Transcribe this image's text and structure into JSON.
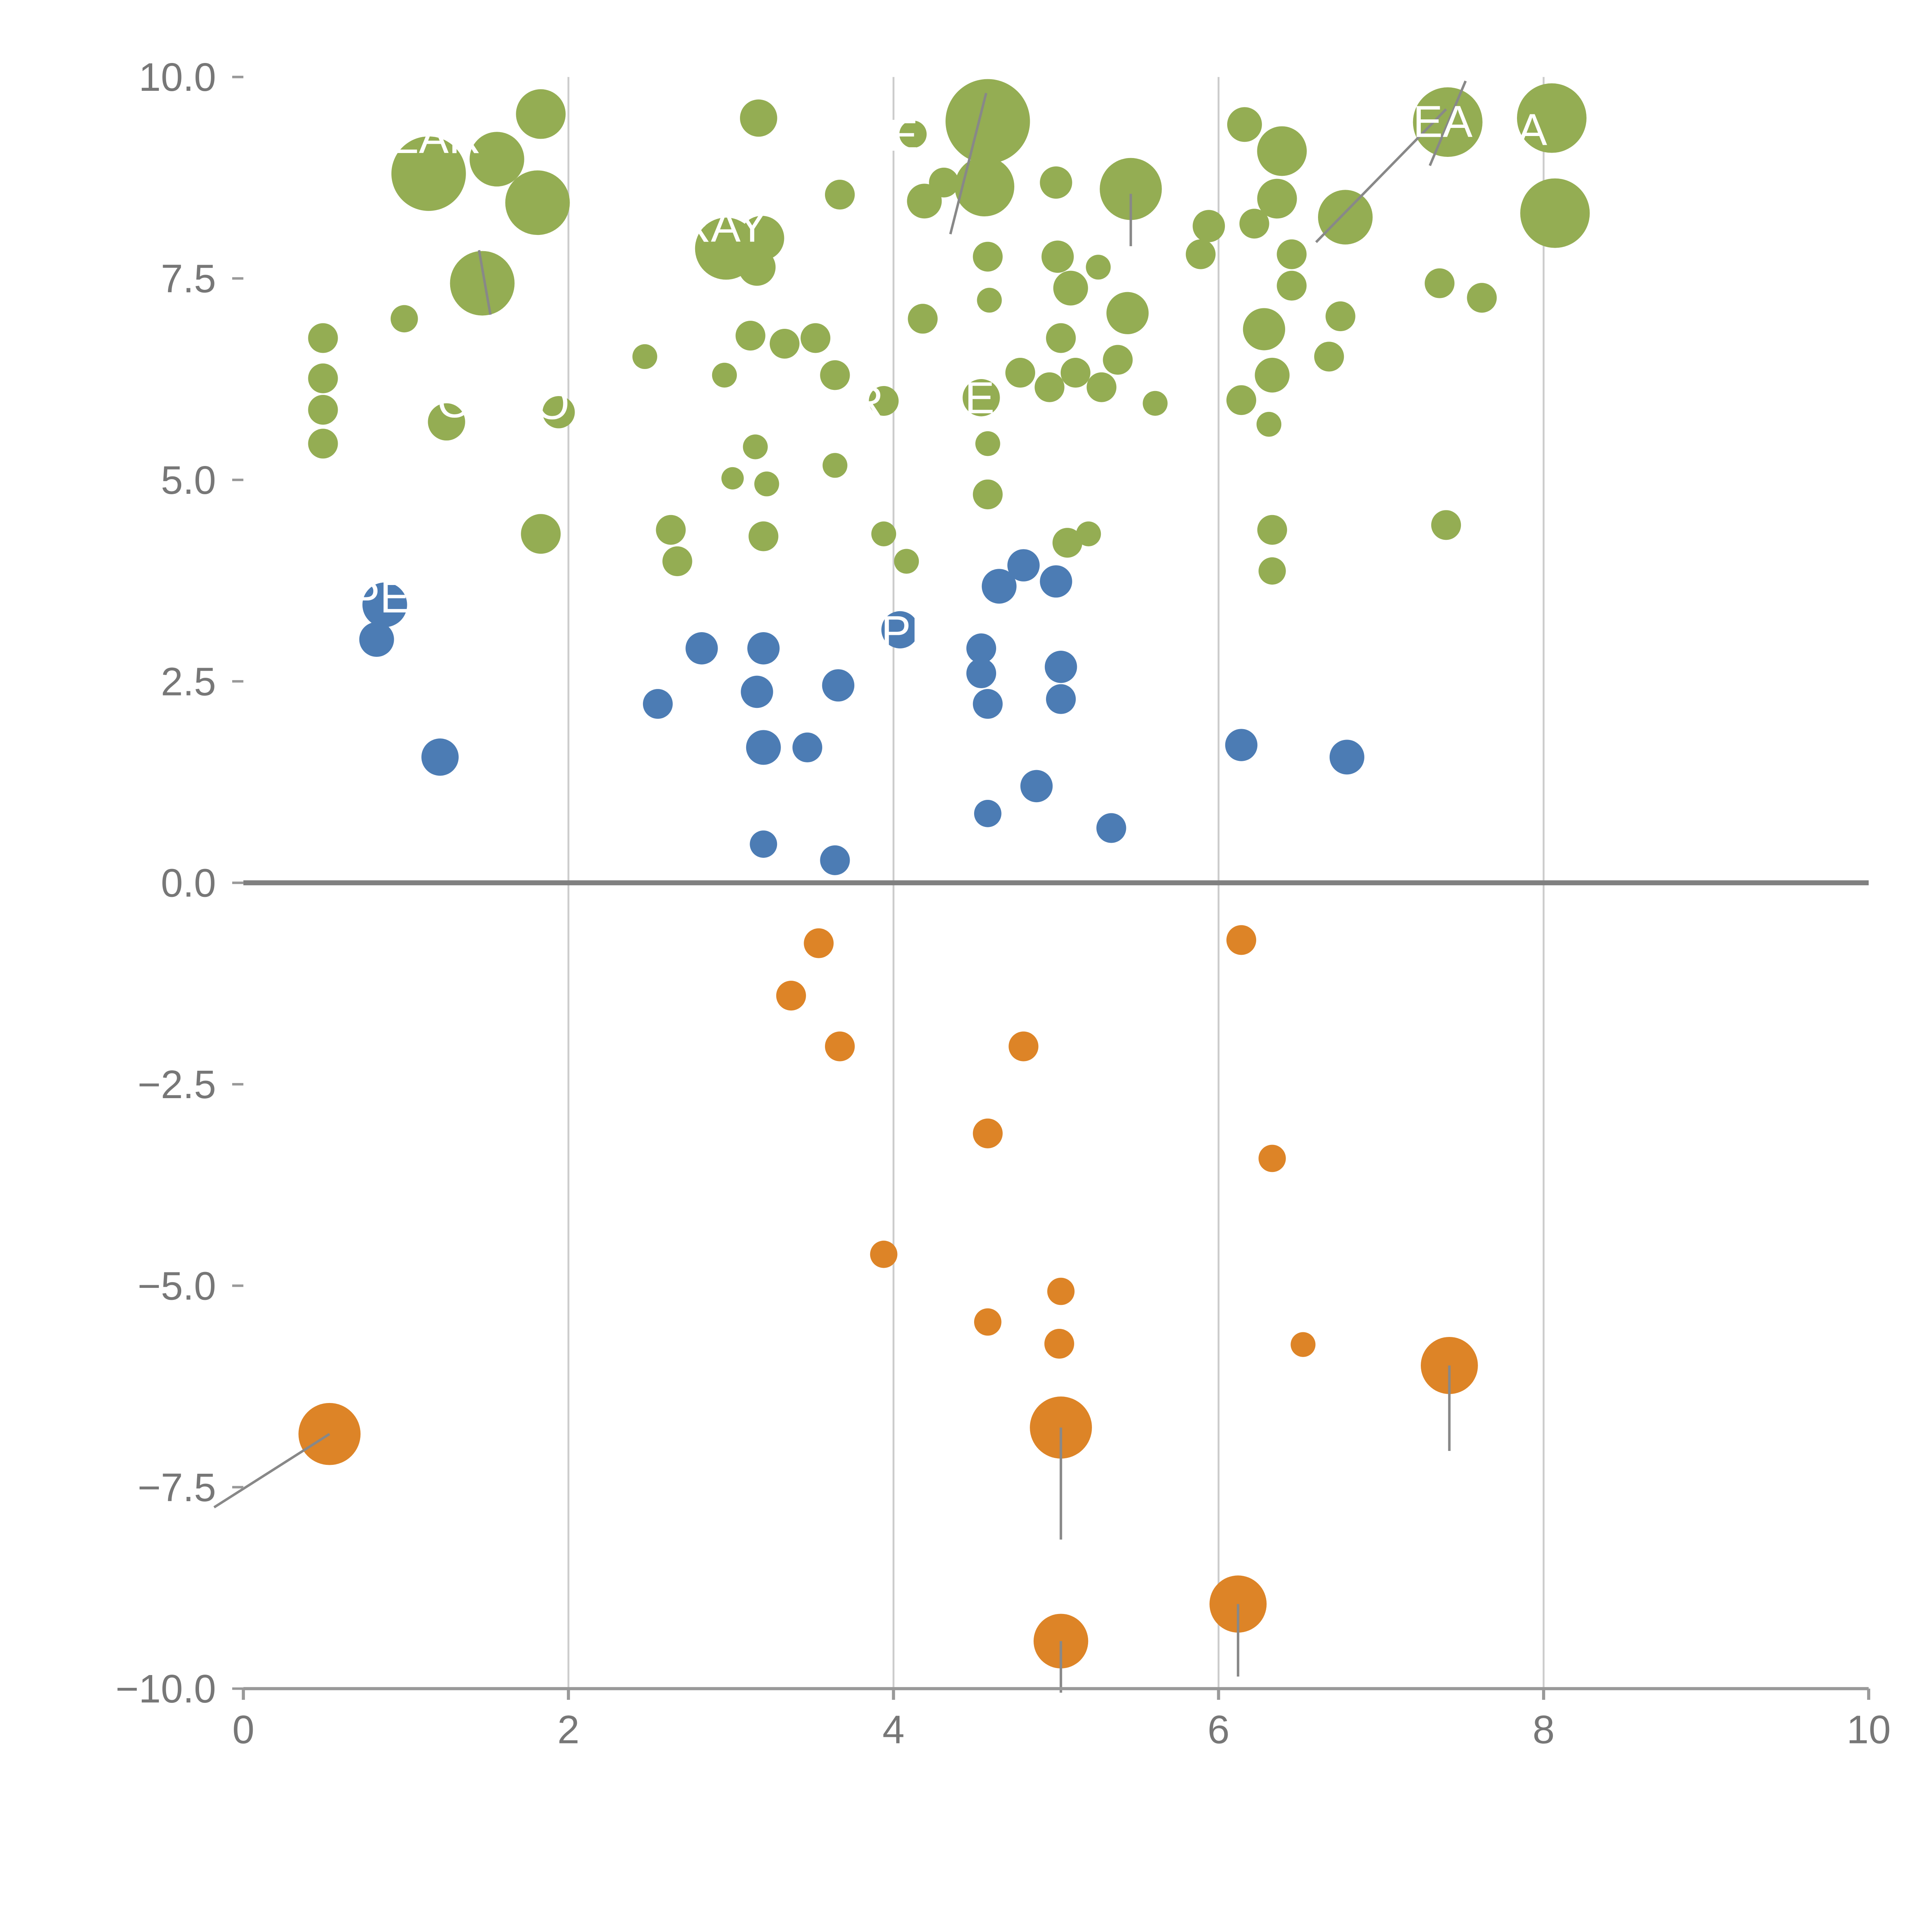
{
  "page": {
    "title": ""
  },
  "colors": {
    "green": "#94ad53",
    "blue": "#4c7cb4",
    "orange": "#dd8427",
    "grid": "#cccccc",
    "zero_line": "#808080",
    "axis": "#999999",
    "tick_label": "#777777",
    "annotation": "#ffffff",
    "leader": "#888888",
    "background": "#ffffff"
  },
  "chart_data": {
    "type": "scatter",
    "title": "",
    "xlabel": "",
    "ylabel": "",
    "xlim": [
      0,
      10
    ],
    "ylim": [
      -10,
      10
    ],
    "grid": "vertical-only",
    "legend": "none",
    "x_ticks": [
      0,
      2,
      4,
      6,
      8,
      10
    ],
    "x_tick_labels": [
      "0",
      "2",
      "4",
      "6",
      "8",
      "10"
    ],
    "y_ticks": [
      10.0,
      7.5,
      5.0,
      2.5,
      0.0,
      -2.5,
      -5.0,
      -7.5,
      -10.0
    ],
    "y_tick_labels": [
      "10.0",
      "7.5",
      "5.0",
      "2.5",
      "0.0",
      "−2.5",
      "−5.0",
      "−7.5",
      "−10.0"
    ],
    "series": [
      {
        "name": "green-bubbles",
        "color_key": "green",
        "points": [
          {
            "x": 1.14,
            "y": 8.8,
            "r": 30
          },
          {
            "x": 1.56,
            "y": 8.98,
            "r": 22
          },
          {
            "x": 1.83,
            "y": 9.54,
            "r": 20
          },
          {
            "x": 1.81,
            "y": 8.44,
            "r": 26
          },
          {
            "x": 3.17,
            "y": 9.49,
            "r": 15
          },
          {
            "x": 4.58,
            "y": 9.45,
            "r": 34
          },
          {
            "x": 4.56,
            "y": 8.64,
            "r": 24
          },
          {
            "x": 4.19,
            "y": 8.46,
            "r": 14
          },
          {
            "x": 4.31,
            "y": 8.69,
            "r": 12
          },
          {
            "x": 5.0,
            "y": 8.69,
            "r": 13
          },
          {
            "x": 5.46,
            "y": 8.61,
            "r": 25
          },
          {
            "x": 6.16,
            "y": 9.41,
            "r": 14
          },
          {
            "x": 6.39,
            "y": 9.08,
            "r": 20
          },
          {
            "x": 6.36,
            "y": 8.49,
            "r": 16
          },
          {
            "x": 7.41,
            "y": 9.44,
            "r": 28
          },
          {
            "x": 8.05,
            "y": 9.49,
            "r": 28
          },
          {
            "x": 8.07,
            "y": 8.31,
            "r": 28
          },
          {
            "x": 5.94,
            "y": 8.15,
            "r": 13
          },
          {
            "x": 6.22,
            "y": 8.18,
            "r": 12
          },
          {
            "x": 6.78,
            "y": 8.26,
            "r": 22
          },
          {
            "x": 7.36,
            "y": 7.44,
            "r": 12
          },
          {
            "x": 7.62,
            "y": 7.26,
            "r": 12
          },
          {
            "x": 3.67,
            "y": 8.54,
            "r": 12
          },
          {
            "x": 2.97,
            "y": 7.87,
            "r": 25
          },
          {
            "x": 3.19,
            "y": 8.0,
            "r": 18
          },
          {
            "x": 3.16,
            "y": 7.64,
            "r": 15
          },
          {
            "x": 1.47,
            "y": 7.44,
            "r": 26
          },
          {
            "x": 0.99,
            "y": 7.0,
            "r": 11
          },
          {
            "x": 5.01,
            "y": 7.77,
            "r": 13
          },
          {
            "x": 5.09,
            "y": 7.38,
            "r": 14
          },
          {
            "x": 5.26,
            "y": 7.64,
            "r": 10
          },
          {
            "x": 5.44,
            "y": 7.07,
            "r": 17
          },
          {
            "x": 5.03,
            "y": 6.76,
            "r": 12
          },
          {
            "x": 4.58,
            "y": 7.77,
            "r": 12
          },
          {
            "x": 4.59,
            "y": 7.23,
            "r": 10
          },
          {
            "x": 4.18,
            "y": 7.0,
            "r": 12
          },
          {
            "x": 0.49,
            "y": 6.76,
            "r": 12
          },
          {
            "x": 0.49,
            "y": 6.26,
            "r": 12
          },
          {
            "x": 0.49,
            "y": 5.87,
            "r": 12
          },
          {
            "x": 0.49,
            "y": 5.45,
            "r": 12
          },
          {
            "x": 1.25,
            "y": 5.72,
            "r": 15
          },
          {
            "x": 1.94,
            "y": 5.84,
            "r": 13
          },
          {
            "x": 2.47,
            "y": 6.53,
            "r": 10
          },
          {
            "x": 2.96,
            "y": 6.3,
            "r": 10
          },
          {
            "x": 3.12,
            "y": 6.79,
            "r": 12
          },
          {
            "x": 3.33,
            "y": 6.69,
            "r": 12
          },
          {
            "x": 3.52,
            "y": 6.76,
            "r": 12
          },
          {
            "x": 3.64,
            "y": 6.3,
            "r": 12
          },
          {
            "x": 3.94,
            "y": 5.98,
            "r": 12
          },
          {
            "x": 4.54,
            "y": 6.02,
            "r": 15
          },
          {
            "x": 4.78,
            "y": 6.33,
            "r": 12
          },
          {
            "x": 4.96,
            "y": 6.15,
            "r": 12
          },
          {
            "x": 5.12,
            "y": 6.33,
            "r": 12
          },
          {
            "x": 5.28,
            "y": 6.15,
            "r": 12
          },
          {
            "x": 5.38,
            "y": 6.49,
            "r": 12
          },
          {
            "x": 5.61,
            "y": 5.95,
            "r": 10
          },
          {
            "x": 6.14,
            "y": 5.99,
            "r": 12
          },
          {
            "x": 6.31,
            "y": 5.69,
            "r": 10
          },
          {
            "x": 6.33,
            "y": 6.3,
            "r": 14
          },
          {
            "x": 6.28,
            "y": 6.87,
            "r": 17
          },
          {
            "x": 4.58,
            "y": 5.45,
            "r": 10
          },
          {
            "x": 4.58,
            "y": 4.82,
            "r": 12
          },
          {
            "x": 3.15,
            "y": 5.41,
            "r": 10
          },
          {
            "x": 3.22,
            "y": 4.95,
            "r": 10
          },
          {
            "x": 3.64,
            "y": 5.18,
            "r": 10
          },
          {
            "x": 3.01,
            "y": 5.02,
            "r": 9
          },
          {
            "x": 2.63,
            "y": 4.38,
            "r": 12
          },
          {
            "x": 2.67,
            "y": 3.99,
            "r": 12
          },
          {
            "x": 1.83,
            "y": 4.33,
            "r": 16
          },
          {
            "x": 3.2,
            "y": 4.3,
            "r": 12
          },
          {
            "x": 3.94,
            "y": 4.33,
            "r": 10
          },
          {
            "x": 4.08,
            "y": 3.99,
            "r": 10
          },
          {
            "x": 5.07,
            "y": 4.22,
            "r": 12
          },
          {
            "x": 5.2,
            "y": 4.33,
            "r": 10
          },
          {
            "x": 6.33,
            "y": 4.38,
            "r": 12
          },
          {
            "x": 6.33,
            "y": 3.87,
            "r": 11
          },
          {
            "x": 7.4,
            "y": 4.44,
            "r": 12
          },
          {
            "x": 6.68,
            "y": 6.53,
            "r": 12
          },
          {
            "x": 6.75,
            "y": 7.03,
            "r": 12
          },
          {
            "x": 6.45,
            "y": 7.41,
            "r": 12
          },
          {
            "x": 6.45,
            "y": 7.8,
            "r": 12
          },
          {
            "x": 4.12,
            "y": 9.29,
            "r": 11
          },
          {
            "x": 5.89,
            "y": 7.8,
            "r": 12
          }
        ]
      },
      {
        "name": "blue-bubbles",
        "color_key": "blue",
        "points": [
          {
            "x": 0.87,
            "y": 3.45,
            "r": 18
          },
          {
            "x": 0.82,
            "y": 3.02,
            "r": 14
          },
          {
            "x": 1.21,
            "y": 1.56,
            "r": 15
          },
          {
            "x": 2.55,
            "y": 2.22,
            "r": 12
          },
          {
            "x": 2.82,
            "y": 2.91,
            "r": 13
          },
          {
            "x": 3.2,
            "y": 2.91,
            "r": 13
          },
          {
            "x": 3.16,
            "y": 2.37,
            "r": 13
          },
          {
            "x": 3.2,
            "y": 1.68,
            "r": 14
          },
          {
            "x": 3.47,
            "y": 1.68,
            "r": 12
          },
          {
            "x": 3.66,
            "y": 2.45,
            "r": 13
          },
          {
            "x": 3.2,
            "y": 0.48,
            "r": 11
          },
          {
            "x": 3.64,
            "y": 0.28,
            "r": 12
          },
          {
            "x": 4.04,
            "y": 3.14,
            "r": 15
          },
          {
            "x": 4.54,
            "y": 2.91,
            "r": 12
          },
          {
            "x": 4.65,
            "y": 3.68,
            "r": 14
          },
          {
            "x": 4.8,
            "y": 3.94,
            "r": 13
          },
          {
            "x": 5.0,
            "y": 3.74,
            "r": 13
          },
          {
            "x": 4.54,
            "y": 2.6,
            "r": 12
          },
          {
            "x": 4.58,
            "y": 2.22,
            "r": 12
          },
          {
            "x": 5.03,
            "y": 2.68,
            "r": 13
          },
          {
            "x": 5.03,
            "y": 2.28,
            "r": 12
          },
          {
            "x": 4.58,
            "y": 0.86,
            "r": 11
          },
          {
            "x": 4.88,
            "y": 1.2,
            "r": 13
          },
          {
            "x": 5.34,
            "y": 0.68,
            "r": 12
          },
          {
            "x": 6.14,
            "y": 1.71,
            "r": 13
          },
          {
            "x": 6.79,
            "y": 1.56,
            "r": 14
          }
        ]
      },
      {
        "name": "orange-bubbles",
        "color_key": "orange",
        "points": [
          {
            "x": 3.54,
            "y": -0.75,
            "r": 12
          },
          {
            "x": 6.14,
            "y": -0.71,
            "r": 12
          },
          {
            "x": 3.37,
            "y": -1.4,
            "r": 12
          },
          {
            "x": 3.67,
            "y": -2.03,
            "r": 12
          },
          {
            "x": 4.8,
            "y": -2.03,
            "r": 12
          },
          {
            "x": 4.58,
            "y": -3.11,
            "r": 12
          },
          {
            "x": 6.33,
            "y": -3.42,
            "r": 11
          },
          {
            "x": 3.94,
            "y": -4.61,
            "r": 11
          },
          {
            "x": 5.03,
            "y": -5.07,
            "r": 11
          },
          {
            "x": 4.58,
            "y": -5.45,
            "r": 11
          },
          {
            "x": 5.02,
            "y": -5.72,
            "r": 12
          },
          {
            "x": 6.52,
            "y": -5.73,
            "r": 10
          },
          {
            "x": 7.42,
            "y": -5.99,
            "r": 23
          },
          {
            "x": 0.53,
            "y": -6.84,
            "r": 25
          },
          {
            "x": 5.03,
            "y": -6.76,
            "r": 25
          },
          {
            "x": 6.12,
            "y": -8.95,
            "r": 23
          },
          {
            "x": 5.03,
            "y": -9.41,
            "r": 22
          }
        ]
      }
    ],
    "annotations": [
      {
        "text": "NEAR",
        "x": 1.08,
        "y": 9.25
      },
      {
        "text": "RAY",
        "x": 2.95,
        "y": 8.15
      },
      {
        "text": "E",
        "x": 4.06,
        "y": 9.28
      },
      {
        "text": "CEA",
        "x": 7.28,
        "y": 9.45
      },
      {
        "text": "A",
        "x": 7.93,
        "y": 9.35
      },
      {
        "text": "O",
        "x": 1.3,
        "y": 5.97
      },
      {
        "text": "O",
        "x": 1.9,
        "y": 5.95
      },
      {
        "text": "R",
        "x": 3.84,
        "y": 5.97
      },
      {
        "text": "E",
        "x": 4.53,
        "y": 6.02
      },
      {
        "text": "PE",
        "x": 0.84,
        "y": 3.55
      },
      {
        "text": "PPL",
        "x": 4.0,
        "y": 3.12
      }
    ],
    "leader_lines": [
      {
        "x1": 0.53,
        "y1": -6.84,
        "x2": -0.18,
        "y2": -7.75
      },
      {
        "x1": 5.03,
        "y1": -6.76,
        "x2": 5.03,
        "y2": -8.15
      },
      {
        "x1": 7.42,
        "y1": -5.99,
        "x2": 7.42,
        "y2": -7.05
      },
      {
        "x1": 6.12,
        "y1": -8.95,
        "x2": 6.12,
        "y2": -9.85
      },
      {
        "x1": 5.03,
        "y1": -9.41,
        "x2": 5.03,
        "y2": -10.05
      },
      {
        "x1": 4.57,
        "y1": 9.8,
        "x2": 4.35,
        "y2": 8.05
      },
      {
        "x1": 6.6,
        "y1": 7.95,
        "x2": 7.4,
        "y2": 9.6
      },
      {
        "x1": 5.46,
        "y1": 8.55,
        "x2": 5.46,
        "y2": 7.9
      },
      {
        "x1": 1.45,
        "y1": 7.85,
        "x2": 1.52,
        "y2": 7.05
      },
      {
        "x1": 7.3,
        "y1": 8.9,
        "x2": 7.52,
        "y2": 9.95
      }
    ]
  }
}
